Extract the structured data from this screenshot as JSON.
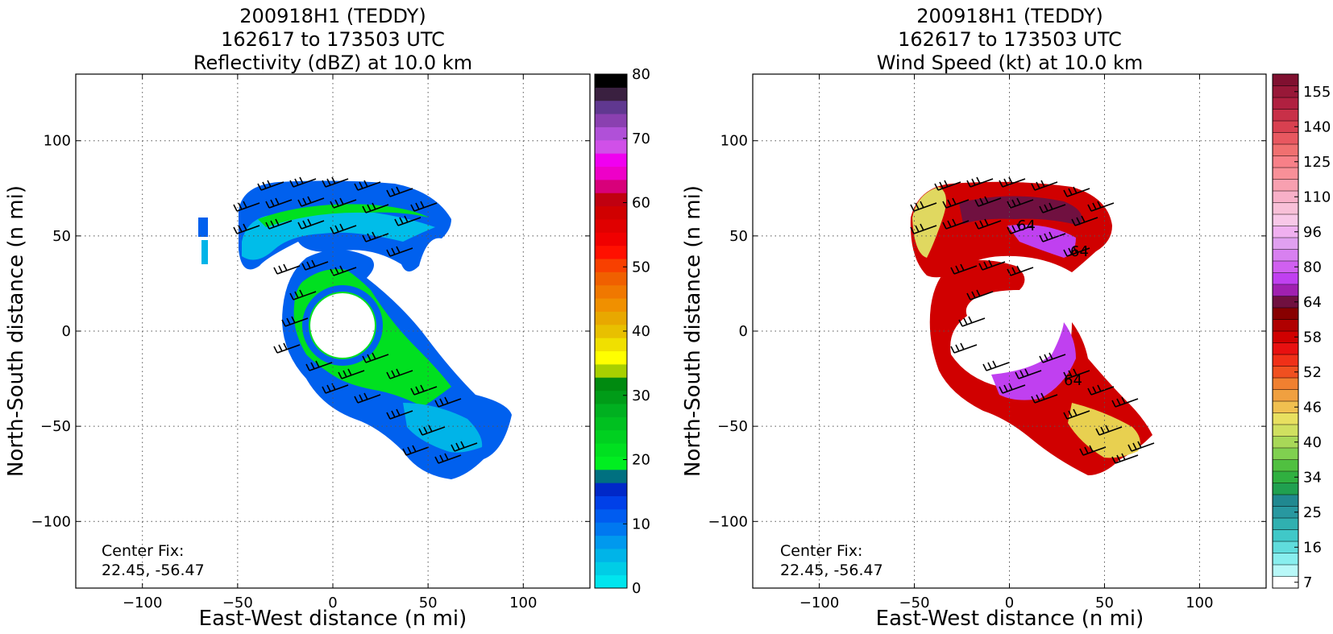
{
  "chart_data": [
    {
      "type": "heatmap",
      "title_lines": [
        "200918H1 (TEDDY)",
        "162617 to 173503 UTC",
        "Reflectivity (dBZ) at 10.0 km"
      ],
      "xlabel": "East-West distance (n mi)",
      "ylabel": "North-South distance (n mi)",
      "xlim": [
        -135,
        135
      ],
      "ylim": [
        -135,
        135
      ],
      "xticks": [
        -100,
        -50,
        0,
        50,
        100
      ],
      "yticks": [
        100,
        50,
        0,
        -50,
        -100
      ],
      "grid": true,
      "annotation": [
        "Center Fix:",
        "22.45, -56.47"
      ],
      "colorbar": {
        "label_values": [
          0,
          10,
          20,
          30,
          40,
          50,
          60,
          70,
          80
        ],
        "range": [
          0,
          80
        ],
        "colors": [
          "#00e5ee",
          "#00cde6",
          "#00b4e8",
          "#0099ee",
          "#0078f0",
          "#005cf0",
          "#0040e8",
          "#0028c8",
          "#007080",
          "#00ee20",
          "#00e020",
          "#00d020",
          "#00c020",
          "#00b020",
          "#009c18",
          "#008a10",
          "#a8d000",
          "#ffff00",
          "#f0e000",
          "#e8c000",
          "#e8a800",
          "#f09000",
          "#f07800",
          "#f06000",
          "#f84000",
          "#ff1000",
          "#f00000",
          "#e00000",
          "#d00000",
          "#c00010",
          "#d8007a",
          "#ee00c8",
          "#f000f0",
          "#d050e8",
          "#b050d8",
          "#8a40b0",
          "#603890",
          "#3a2040",
          "#000000"
        ]
      },
      "features": [
        {
          "name": "eye",
          "center": [
            8,
            3
          ],
          "radius": 18
        },
        {
          "name": "outer-band",
          "extent_x": [
            -70,
            97
          ],
          "extent_y": [
            -78,
            80
          ]
        }
      ]
    },
    {
      "type": "heatmap",
      "title_lines": [
        "200918H1 (TEDDY)",
        "162617 to 173503 UTC",
        "Wind Speed (kt) at 10.0 km"
      ],
      "xlabel": "East-West distance (n mi)",
      "ylabel": "North-South distance (n mi)",
      "xlim": [
        -135,
        135
      ],
      "ylim": [
        -135,
        135
      ],
      "xticks": [
        -100,
        -50,
        0,
        50,
        100
      ],
      "yticks": [
        100,
        50,
        0,
        -50,
        -100
      ],
      "grid": true,
      "annotation": [
        "Center Fix:",
        "22.45, -56.47"
      ],
      "contour_labels": [
        "64",
        "64",
        "64"
      ],
      "colorbar": {
        "label_values": [
          7,
          16,
          25,
          34,
          40,
          46,
          52,
          58,
          64,
          80,
          96,
          110,
          125,
          140,
          155
        ],
        "label_positions": [
          0.5,
          3.5,
          6.5,
          9.5,
          12.5,
          15.5,
          18.5,
          21.5,
          24.5,
          27.5,
          30.5,
          33.5,
          36.5,
          39.5,
          42.5
        ],
        "colors": [
          "#ffffff",
          "#b8f8f8",
          "#88eeee",
          "#60dcdc",
          "#40c8c8",
          "#30b0b0",
          "#2898a0",
          "#208890",
          "#20a050",
          "#30b040",
          "#50c040",
          "#80d050",
          "#a8d858",
          "#d0e060",
          "#e8e060",
          "#f0c050",
          "#f0a040",
          "#f08030",
          "#f05020",
          "#f03018",
          "#e81010",
          "#d00000",
          "#b00000",
          "#880000",
          "#701040",
          "#a020b0",
          "#c040f0",
          "#d060f0",
          "#d880f0",
          "#e0a0f0",
          "#f0b0f0",
          "#f8c8e8",
          "#f8c0d8",
          "#f8b0c8",
          "#f8a0b0",
          "#f89098",
          "#f88088",
          "#f07070",
          "#e85860",
          "#d84050",
          "#c83048",
          "#b02040",
          "#981838",
          "#801030"
        ]
      }
    }
  ]
}
